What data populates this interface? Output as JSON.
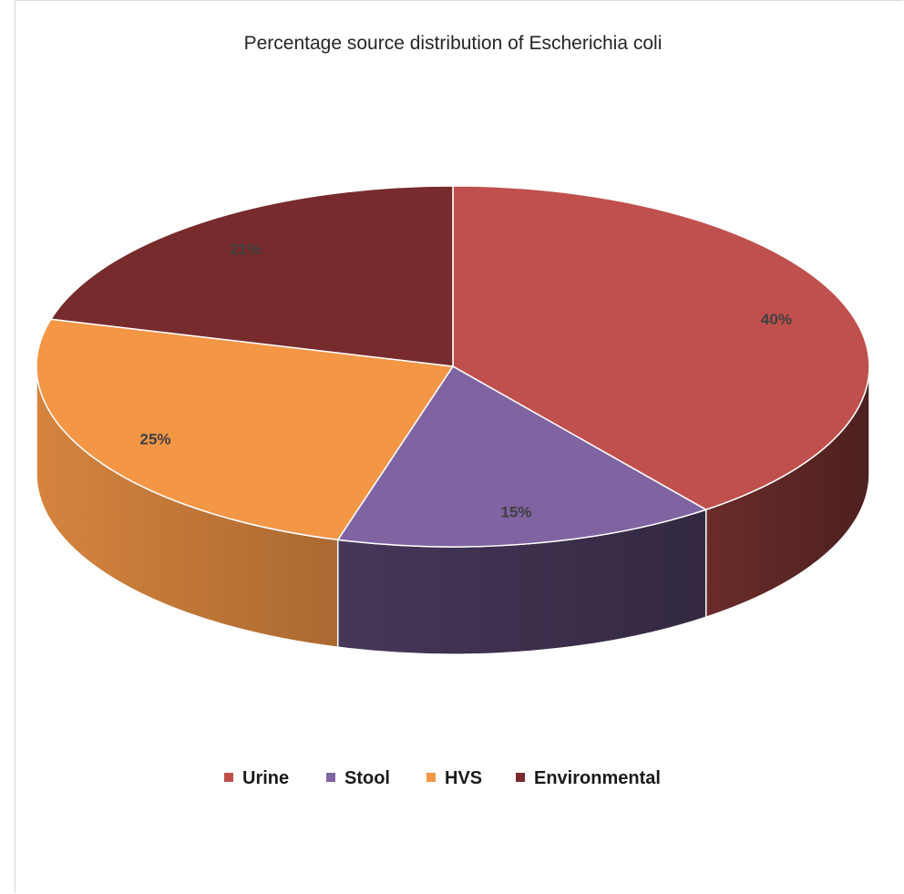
{
  "chart_data": {
    "type": "pie",
    "title": "Percentage source distribution of Escherichia coli",
    "categories": [
      "Urine",
      "Stool",
      "HVS",
      "Environmental"
    ],
    "values": [
      40,
      15,
      25,
      21
    ],
    "labels": [
      "40%",
      "15%",
      "25%",
      "21%"
    ],
    "colors": [
      "#C0504D",
      "#8064A2",
      "#F39646",
      "#772B2C"
    ],
    "style": "3d",
    "legend_position": "bottom"
  }
}
